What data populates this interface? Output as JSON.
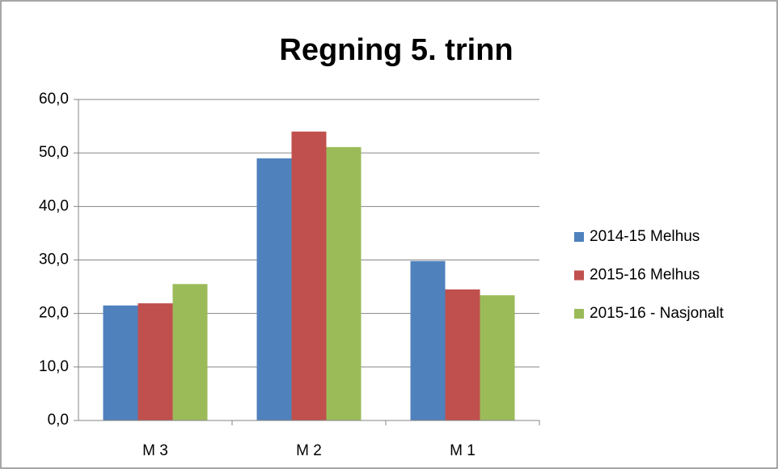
{
  "chart_data": {
    "type": "bar",
    "title": "Regning 5. trinn",
    "categories": [
      "M 3",
      "M 2",
      "M 1"
    ],
    "series": [
      {
        "name": "2014-15 Melhus",
        "color": "#4f81bd",
        "values": [
          21.5,
          49.0,
          29.8
        ]
      },
      {
        "name": "2015-16 Melhus",
        "color": "#c0504d",
        "values": [
          21.9,
          54.0,
          24.5
        ]
      },
      {
        "name": "2015-16 - Nasjonalt",
        "color": "#9bbb59",
        "values": [
          25.5,
          51.1,
          23.4
        ]
      }
    ],
    "ylim": [
      0,
      60
    ],
    "yticks": [
      {
        "value": 0,
        "label": "0,0"
      },
      {
        "value": 10,
        "label": "10,0"
      },
      {
        "value": 20,
        "label": "20,0"
      },
      {
        "value": 30,
        "label": "30,0"
      },
      {
        "value": 40,
        "label": "40,0"
      },
      {
        "value": 50,
        "label": "50,0"
      },
      {
        "value": 60,
        "label": "60,0"
      }
    ],
    "grid": true,
    "legend": "right"
  }
}
